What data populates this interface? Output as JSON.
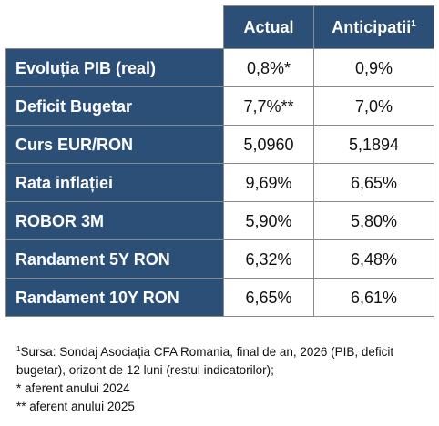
{
  "table": {
    "headers": {
      "actual": "Actual",
      "anticipated": "Anticipatii",
      "anticipated_sup": "1"
    },
    "rows": [
      {
        "label": "Evoluția PIB (real)",
        "actual": "0,8%*",
        "anticipated": "0,9%"
      },
      {
        "label": "Deficit Bugetar",
        "actual": "7,7%**",
        "anticipated": "7,0%"
      },
      {
        "label": "Curs EUR/RON",
        "actual": "5,0960",
        "anticipated": "5,1894"
      },
      {
        "label": "Rata inflației",
        "actual": "9,69%",
        "anticipated": "6,65%"
      },
      {
        "label": "ROBOR 3M",
        "actual": "5,90%",
        "anticipated": "5,80%"
      },
      {
        "label": "Randament 5Y RON",
        "actual": "6,32%",
        "anticipated": "6,48%"
      },
      {
        "label": "Randament 10Y RON",
        "actual": "6,65%",
        "anticipated": "6,61%"
      }
    ]
  },
  "notes": {
    "source_sup": "1",
    "source": "Sursa: Sondaj Asociația CFA Romania, final de an, 2026 (PIB, deficit bugetar), orizont de 12 luni (restul indicatorilor);",
    "note1": "* aferent anului 2024",
    "note2": "** aferent anului 2025"
  },
  "colors": {
    "header_bg": "#2c4f78",
    "header_text": "#ffffff",
    "border": "#8a8a8a"
  }
}
